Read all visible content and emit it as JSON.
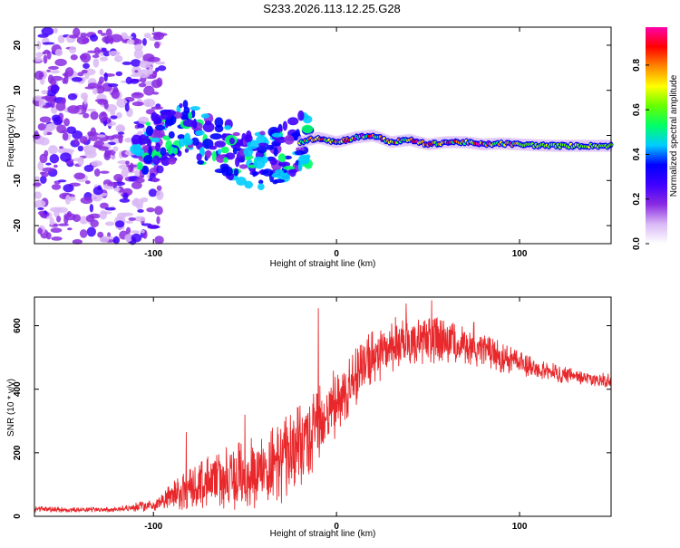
{
  "title": "S233.2026.113.12.25.G28",
  "chart_data": [
    {
      "type": "heatmap",
      "xlabel": "Height of straight line (km)",
      "ylabel": "Frequency (Hz)",
      "xlim": [
        -165,
        150
      ],
      "ylim": [
        -24,
        24
      ],
      "xticks": [
        {
          "v": -100,
          "label": "-100"
        },
        {
          "v": 0,
          "label": "0"
        },
        {
          "v": 100,
          "label": "100"
        }
      ],
      "yticks": [
        {
          "v": -20,
          "label": "-20"
        },
        {
          "v": -10,
          "label": "-10"
        },
        {
          "v": 0,
          "label": "0"
        },
        {
          "v": 10,
          "label": "10"
        },
        {
          "v": 20,
          "label": "20"
        }
      ],
      "colorbar": {
        "label": "Normalized spectral amplitude",
        "range": [
          0,
          0.97
        ],
        "ticks": [
          {
            "v": 0.0,
            "label": "0.0"
          },
          {
            "v": 0.2,
            "label": "0.2"
          },
          {
            "v": 0.4,
            "label": "0.4"
          },
          {
            "v": 0.6,
            "label": "0.6"
          },
          {
            "v": 0.8,
            "label": "0.8"
          }
        ],
        "colors": [
          "#ffffff",
          "#d9b8f5",
          "#8a2be2",
          "#3f00ff",
          "#0000ff",
          "#00ccff",
          "#00ff66",
          "#66ff00",
          "#ffff00",
          "#ff8800",
          "#ff0000",
          "#ff00aa"
        ]
      },
      "ridge": [
        {
          "x": -110,
          "f": -3.0
        },
        {
          "x": -95,
          "f": -1.0
        },
        {
          "x": -80,
          "f": 1.5
        },
        {
          "x": -70,
          "f": -2.0
        },
        {
          "x": -60,
          "f": -3.0
        },
        {
          "x": -50,
          "f": -5.0
        },
        {
          "x": -40,
          "f": -5.5
        },
        {
          "x": -30,
          "f": -4.0
        },
        {
          "x": -20,
          "f": -1.5
        },
        {
          "x": -10,
          "f": -0.5
        },
        {
          "x": 0,
          "f": -1.5
        },
        {
          "x": 10,
          "f": -0.5
        },
        {
          "x": 20,
          "f": 0.0
        },
        {
          "x": 30,
          "f": -1.5
        },
        {
          "x": 40,
          "f": -1.0
        },
        {
          "x": 50,
          "f": -2.0
        },
        {
          "x": 60,
          "f": -1.5
        },
        {
          "x": 70,
          "f": -1.5
        },
        {
          "x": 80,
          "f": -2.0
        },
        {
          "x": 90,
          "f": -1.8
        },
        {
          "x": 100,
          "f": -2.0
        },
        {
          "x": 110,
          "f": -2.2
        },
        {
          "x": 120,
          "f": -2.3
        },
        {
          "x": 130,
          "f": -2.3
        },
        {
          "x": 140,
          "f": -2.3
        },
        {
          "x": 150,
          "f": -2.3
        }
      ]
    },
    {
      "type": "line",
      "xlabel": "Height of straight line (km)",
      "ylabel": "SNR (10 * v/v)",
      "xlim": [
        -165,
        150
      ],
      "ylim": [
        0,
        690
      ],
      "xticks": [
        {
          "v": -100,
          "label": "-100"
        },
        {
          "v": 0,
          "label": "0"
        },
        {
          "v": 100,
          "label": "100"
        }
      ],
      "yticks": [
        {
          "v": 0,
          "label": "0"
        },
        {
          "v": 200,
          "label": "200"
        },
        {
          "v": 400,
          "label": "400"
        },
        {
          "v": 600,
          "label": "600"
        }
      ],
      "color": "#e8282b",
      "series": [
        {
          "name": "SNR",
          "envelope": [
            {
              "x": -165,
              "mean": 22,
              "amp": 10
            },
            {
              "x": -140,
              "mean": 20,
              "amp": 8
            },
            {
              "x": -120,
              "mean": 22,
              "amp": 8
            },
            {
              "x": -100,
              "mean": 35,
              "amp": 20
            },
            {
              "x": -90,
              "mean": 60,
              "amp": 45
            },
            {
              "x": -80,
              "mean": 90,
              "amp": 70
            },
            {
              "x": -70,
              "mean": 110,
              "amp": 90
            },
            {
              "x": -60,
              "mean": 120,
              "amp": 100
            },
            {
              "x": -50,
              "mean": 130,
              "amp": 110
            },
            {
              "x": -40,
              "mean": 150,
              "amp": 120
            },
            {
              "x": -30,
              "mean": 170,
              "amp": 130
            },
            {
              "x": -20,
              "mean": 220,
              "amp": 140
            },
            {
              "x": -10,
              "mean": 280,
              "amp": 130
            },
            {
              "x": 0,
              "mean": 360,
              "amp": 110
            },
            {
              "x": 10,
              "mean": 430,
              "amp": 100
            },
            {
              "x": 20,
              "mean": 500,
              "amp": 90
            },
            {
              "x": 30,
              "mean": 540,
              "amp": 90
            },
            {
              "x": 40,
              "mean": 550,
              "amp": 80
            },
            {
              "x": 50,
              "mean": 560,
              "amp": 80
            },
            {
              "x": 60,
              "mean": 550,
              "amp": 70
            },
            {
              "x": 70,
              "mean": 540,
              "amp": 60
            },
            {
              "x": 80,
              "mean": 520,
              "amp": 55
            },
            {
              "x": 90,
              "mean": 500,
              "amp": 50
            },
            {
              "x": 100,
              "mean": 480,
              "amp": 40
            },
            {
              "x": 110,
              "mean": 465,
              "amp": 30
            },
            {
              "x": 120,
              "mean": 450,
              "amp": 30
            },
            {
              "x": 130,
              "mean": 440,
              "amp": 25
            },
            {
              "x": 140,
              "mean": 430,
              "amp": 25
            },
            {
              "x": 150,
              "mean": 425,
              "amp": 25
            }
          ],
          "spikes": [
            {
              "x": -10,
              "y": 655
            },
            {
              "x": -82,
              "y": 265
            },
            {
              "x": -50,
              "y": 320
            },
            {
              "x": 52,
              "y": 680
            },
            {
              "x": 38,
              "y": 670
            },
            {
              "x": 75,
              "y": 610
            }
          ]
        }
      ]
    }
  ]
}
